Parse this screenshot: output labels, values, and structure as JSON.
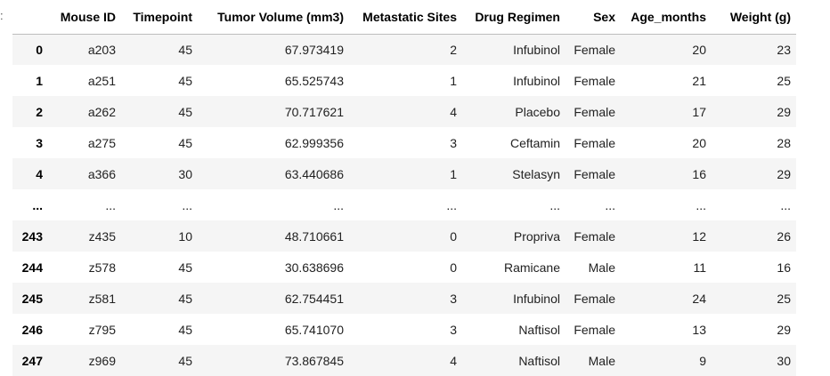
{
  "prompt": ":",
  "table": {
    "columns": [
      "",
      "Mouse ID",
      "Timepoint",
      "Tumor Volume (mm3)",
      "Metastatic Sites",
      "Drug Regimen",
      "Sex",
      "Age_months",
      "Weight (g)"
    ],
    "rows": [
      [
        "0",
        "a203",
        "45",
        "67.973419",
        "2",
        "Infubinol",
        "Female",
        "20",
        "23"
      ],
      [
        "1",
        "a251",
        "45",
        "65.525743",
        "1",
        "Infubinol",
        "Female",
        "21",
        "25"
      ],
      [
        "2",
        "a262",
        "45",
        "70.717621",
        "4",
        "Placebo",
        "Female",
        "17",
        "29"
      ],
      [
        "3",
        "a275",
        "45",
        "62.999356",
        "3",
        "Ceftamin",
        "Female",
        "20",
        "28"
      ],
      [
        "4",
        "a366",
        "30",
        "63.440686",
        "1",
        "Stelasyn",
        "Female",
        "16",
        "29"
      ],
      [
        "...",
        "...",
        "...",
        "...",
        "...",
        "...",
        "...",
        "...",
        "..."
      ],
      [
        "243",
        "z435",
        "10",
        "48.710661",
        "0",
        "Propriva",
        "Female",
        "12",
        "26"
      ],
      [
        "244",
        "z578",
        "45",
        "30.638696",
        "0",
        "Ramicane",
        "Male",
        "11",
        "16"
      ],
      [
        "245",
        "z581",
        "45",
        "62.754451",
        "3",
        "Infubinol",
        "Female",
        "24",
        "25"
      ],
      [
        "246",
        "z795",
        "45",
        "65.741070",
        "3",
        "Naftisol",
        "Female",
        "13",
        "29"
      ],
      [
        "247",
        "z969",
        "45",
        "73.867845",
        "4",
        "Naftisol",
        "Male",
        "9",
        "30"
      ]
    ]
  }
}
